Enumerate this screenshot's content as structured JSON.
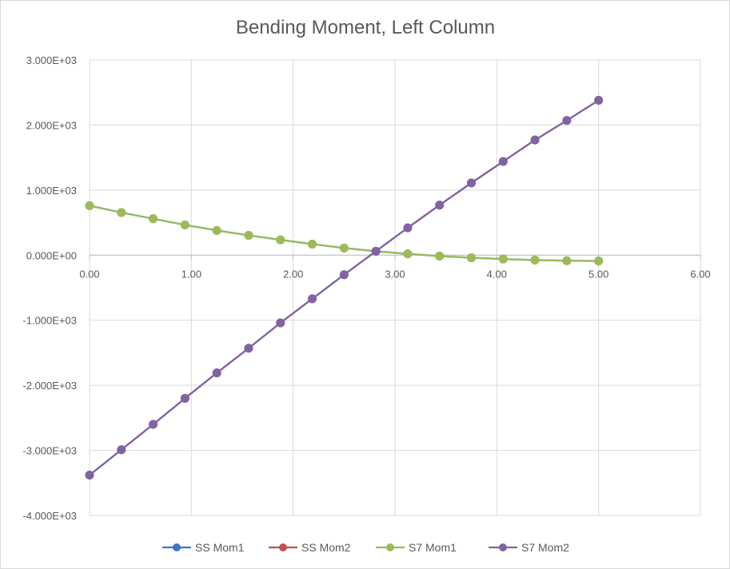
{
  "chart_data": {
    "type": "line",
    "title": "Bending Moment, Left Column",
    "xlabel": "",
    "ylabel": "",
    "xlim": [
      0,
      6
    ],
    "ylim": [
      -4000,
      3000
    ],
    "x_ticks": [
      "0.00",
      "1.00",
      "2.00",
      "3.00",
      "4.00",
      "5.00",
      "6.00"
    ],
    "y_ticks": [
      "3.000E+03",
      "2.000E+03",
      "1.000E+03",
      "0.000E+00",
      "-1.000E+03",
      "-2.000E+03",
      "-3.000E+03",
      "-4.000E+03"
    ],
    "y_tick_values": [
      3000,
      2000,
      1000,
      0,
      -1000,
      -2000,
      -3000,
      -4000
    ],
    "x_tick_values": [
      0,
      1,
      2,
      3,
      4,
      5,
      6
    ],
    "grid": true,
    "legend_position": "bottom",
    "x": [
      0,
      0.3125,
      0.625,
      0.9375,
      1.25,
      1.5625,
      1.875,
      2.1875,
      2.5,
      2.8125,
      3.125,
      3.4375,
      3.75,
      4.0625,
      4.375,
      4.6875,
      5.0
    ],
    "series": [
      {
        "name": "SS Mom1",
        "color": "#4472c4",
        "values": [
          760,
          655,
          560,
          465,
          380,
          305,
          235,
          170,
          110,
          60,
          20,
          -15,
          -40,
          -60,
          -75,
          -85,
          -90
        ]
      },
      {
        "name": "SS Mom2",
        "color": "#c0504d",
        "values": [
          -3380,
          -2990,
          -2600,
          -2200,
          -1810,
          -1430,
          -1040,
          -670,
          -300,
          60,
          420,
          770,
          1110,
          1440,
          1770,
          2070,
          2380
        ]
      },
      {
        "name": "S7  Mom1",
        "color": "#9bbb59",
        "values": [
          760,
          655,
          560,
          465,
          380,
          305,
          235,
          170,
          110,
          60,
          20,
          -15,
          -40,
          -60,
          -75,
          -85,
          -90
        ]
      },
      {
        "name": "S7 Mom2",
        "color": "#8064a2",
        "values": [
          -3380,
          -2990,
          -2600,
          -2200,
          -1810,
          -1430,
          -1040,
          -670,
          -300,
          60,
          420,
          770,
          1110,
          1440,
          1770,
          2070,
          2380
        ]
      }
    ]
  }
}
